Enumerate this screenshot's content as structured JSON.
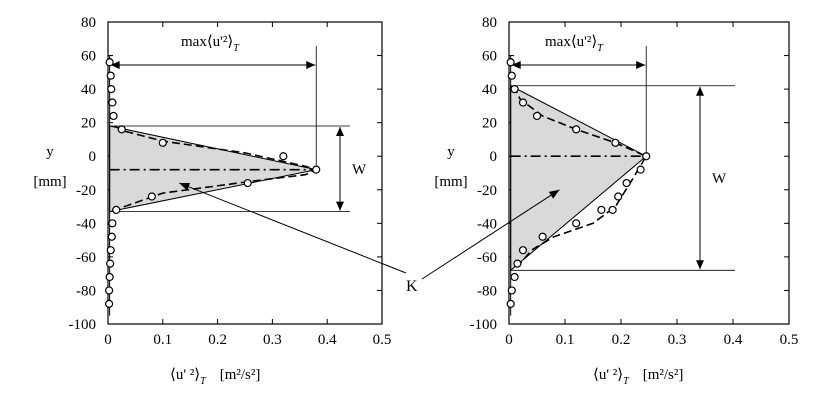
{
  "chart_data": [
    {
      "type": "scatter",
      "xlim": [
        0,
        0.5
      ],
      "ylim": [
        -100,
        80
      ],
      "xticks": [
        "0",
        "0.1",
        "0.2",
        "0.3",
        "0.4",
        "0.5"
      ],
      "yticks": [
        "80",
        "60",
        "40",
        "20",
        "0",
        "-20",
        "-40",
        "-60",
        "-80",
        "-100"
      ],
      "ylabel_line1": "y",
      "ylabel_line2": "[mm]",
      "xlabel_main": "⟨u' ²⟩",
      "xlabel_sub": "T",
      "xlabel_unit": "[m²/s²]",
      "max_label_main": "max⟨u'²⟩",
      "max_label_sub": "T",
      "width_label": "W",
      "grid": false,
      "series": [
        {
          "role": "measured",
          "marker": "open-circle",
          "x": [
            0.003,
            0.005,
            0.006,
            0.008,
            0.01,
            0.025,
            0.1,
            0.32,
            0.38,
            0.255,
            0.08,
            0.015,
            0.008,
            0.007,
            0.005,
            0.004,
            0.003,
            0.002,
            0.002
          ],
          "y": [
            56,
            48,
            40,
            32,
            24,
            16,
            8,
            0,
            -8,
            -16,
            -24,
            -32,
            -40,
            -48,
            -56,
            -64,
            -72,
            -80,
            -88
          ]
        },
        {
          "role": "fit-dashed",
          "x": [
            0.012,
            0.03,
            0.1,
            0.25,
            0.36,
            0.38,
            0.36,
            0.26,
            0.1,
            0.03,
            0.01
          ],
          "y": [
            18,
            15,
            9,
            2,
            -6,
            -8,
            -11,
            -15,
            -22,
            -30,
            -34
          ]
        }
      ],
      "triangle": {
        "x": [
          0.003,
          0.003,
          0.38
        ],
        "y": [
          18,
          -33,
          -8
        ]
      },
      "centerline_y": -8,
      "max_x": 0.38,
      "width_y": [
        18,
        -33
      ]
    },
    {
      "type": "scatter",
      "xlim": [
        0,
        0.5
      ],
      "ylim": [
        -100,
        80
      ],
      "xticks": [
        "0",
        "0.1",
        "0.2",
        "0.3",
        "0.4",
        "0.5"
      ],
      "yticks": [
        "80",
        "60",
        "40",
        "20",
        "0",
        "-20",
        "-40",
        "-60",
        "-80",
        "-100"
      ],
      "ylabel_line1": "y",
      "ylabel_line2": "[mm]",
      "xlabel_main": "⟨u' ²⟩",
      "xlabel_sub": "T",
      "xlabel_unit": "[m²/s²]",
      "max_label_main": "max⟨u'²⟩",
      "max_label_sub": "T",
      "width_label": "W",
      "grid": false,
      "series": [
        {
          "role": "measured",
          "marker": "open-circle",
          "x": [
            0.003,
            0.005,
            0.01,
            0.025,
            0.05,
            0.12,
            0.19,
            0.245,
            0.235,
            0.21,
            0.195,
            0.185,
            0.165,
            0.12,
            0.06,
            0.025,
            0.015,
            0.01,
            0.005,
            0.003
          ],
          "y": [
            56,
            48,
            40,
            32,
            24,
            16,
            8,
            0,
            -8,
            -16,
            -24,
            -32,
            -32,
            -40,
            -48,
            -56,
            -64,
            -72,
            -80,
            -88
          ]
        },
        {
          "role": "fit-dashed",
          "x": [
            0.008,
            0.02,
            0.06,
            0.12,
            0.19,
            0.245,
            0.22,
            0.19,
            0.15,
            0.08,
            0.04,
            0.015
          ],
          "y": [
            42,
            34,
            24,
            16,
            8,
            0,
            -14,
            -30,
            -40,
            -48,
            -56,
            -66
          ]
        }
      ],
      "triangle": {
        "x": [
          0.003,
          0.003,
          0.245
        ],
        "y": [
          42,
          -68,
          0
        ]
      },
      "centerline_y": 0,
      "max_x": 0.245,
      "width_y": [
        42,
        -68
      ]
    }
  ],
  "annotation": {
    "label": "K"
  }
}
